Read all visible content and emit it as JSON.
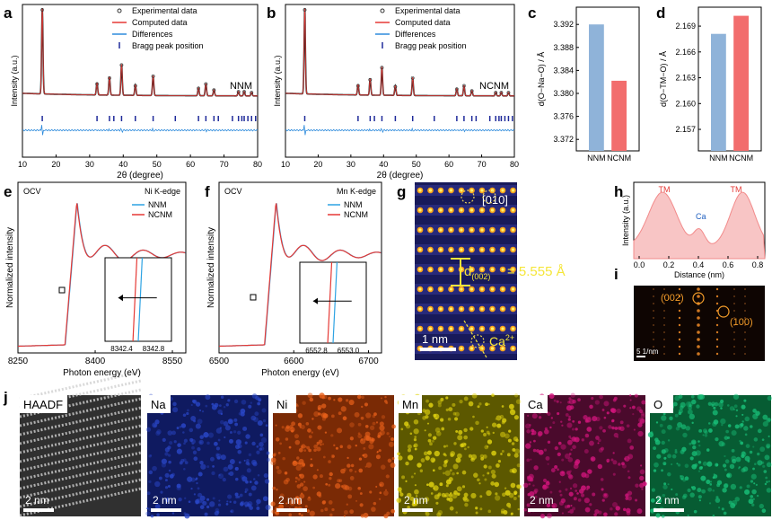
{
  "panels": {
    "a": "a",
    "b": "b",
    "c": "c",
    "d": "d",
    "e": "e",
    "f": "f",
    "g": "g",
    "h": "h",
    "i": "i",
    "j": "j"
  },
  "chart_data": [
    {
      "id": "a",
      "type": "line",
      "xlabel": "2θ (degree)",
      "ylabel": "Intensity (a.u.)",
      "xlim": [
        10,
        80
      ],
      "xticks": [
        "10",
        "20",
        "30",
        "40",
        "50",
        "60",
        "70",
        "80"
      ],
      "annotation": "NNM",
      "legend": [
        "Experimental data",
        "Computed data",
        "Differences",
        "Bragg peak position"
      ],
      "peaks": [
        {
          "x": 15.9,
          "y": 1.0
        },
        {
          "x": 32.2,
          "y": 0.14
        },
        {
          "x": 35.9,
          "y": 0.21
        },
        {
          "x": 39.5,
          "y": 0.36
        },
        {
          "x": 43.6,
          "y": 0.12
        },
        {
          "x": 48.9,
          "y": 0.23
        },
        {
          "x": 62.4,
          "y": 0.09
        },
        {
          "x": 64.6,
          "y": 0.14
        },
        {
          "x": 67.0,
          "y": 0.07
        },
        {
          "x": 74.3,
          "y": 0.05
        },
        {
          "x": 76.0,
          "y": 0.05
        },
        {
          "x": 78.2,
          "y": 0.04
        }
      ],
      "bragg": [
        15.9,
        32.2,
        35.9,
        37.2,
        39.5,
        43.6,
        48.9,
        55.5,
        62.4,
        64.6,
        67.0,
        68.3,
        72.5,
        74.3,
        75.3,
        76.0,
        77.1,
        78.2,
        79.4
      ]
    },
    {
      "id": "b",
      "type": "line",
      "xlabel": "2θ (degree)",
      "ylabel": "Intensity (a.u.)",
      "xlim": [
        10,
        80
      ],
      "xticks": [
        "10",
        "20",
        "30",
        "40",
        "50",
        "60",
        "70",
        "80"
      ],
      "annotation": "NCNM",
      "legend": [
        "Experimental data",
        "Computed data",
        "Differences",
        "Bragg peak position"
      ],
      "peaks": [
        {
          "x": 15.9,
          "y": 1.0
        },
        {
          "x": 32.2,
          "y": 0.12
        },
        {
          "x": 35.9,
          "y": 0.19
        },
        {
          "x": 39.5,
          "y": 0.33
        },
        {
          "x": 43.6,
          "y": 0.11
        },
        {
          "x": 48.9,
          "y": 0.21
        },
        {
          "x": 62.4,
          "y": 0.08
        },
        {
          "x": 64.6,
          "y": 0.12
        },
        {
          "x": 67.0,
          "y": 0.06
        },
        {
          "x": 74.3,
          "y": 0.04
        },
        {
          "x": 76.0,
          "y": 0.04
        },
        {
          "x": 78.2,
          "y": 0.04
        }
      ],
      "bragg": [
        15.9,
        32.2,
        35.9,
        37.2,
        39.5,
        43.6,
        48.9,
        55.5,
        62.4,
        64.6,
        67.0,
        68.3,
        72.5,
        74.3,
        75.3,
        76.0,
        77.1,
        78.2,
        79.4
      ]
    },
    {
      "id": "c",
      "type": "bar",
      "ylabel": "d(O−Na−O) / Å",
      "categories": [
        "NNM",
        "NCNM"
      ],
      "values": [
        3.392,
        3.3822
      ],
      "colors": [
        "#8fb3d9",
        "#f26d6d"
      ],
      "ylim": [
        3.37,
        3.395
      ],
      "yticks": [
        "3.372",
        "3.376",
        "3.380",
        "3.384",
        "3.388",
        "3.392"
      ]
    },
    {
      "id": "d",
      "type": "bar",
      "ylabel": "d(O−TM−O) / Å",
      "categories": [
        "NNM",
        "NCNM"
      ],
      "values": [
        2.1681,
        2.1702
      ],
      "colors": [
        "#8fb3d9",
        "#f26d6d"
      ],
      "ylim": [
        2.1545,
        2.1712
      ],
      "yticks": [
        "2.157",
        "2.160",
        "2.163",
        "2.166",
        "2.169"
      ]
    },
    {
      "id": "e",
      "type": "line",
      "xlabel": "Photon energy (eV)",
      "ylabel": "Normalized intensity",
      "corner_left": "OCV",
      "corner_right": "Ni K-edge",
      "series": [
        {
          "name": "NNM",
          "color": "#2ea3e3"
        },
        {
          "name": "NCNM",
          "color": "#e53935"
        }
      ],
      "xticks": [
        "8250",
        "8400",
        "8550"
      ],
      "inset_xticks": [
        "8342.4",
        "8342.8"
      ]
    },
    {
      "id": "f",
      "type": "line",
      "xlabel": "Photon energy (eV)",
      "ylabel": "Normalized intensity",
      "corner_left": "OCV",
      "corner_right": "Mn K-edge",
      "series": [
        {
          "name": "NNM",
          "color": "#2ea3e3"
        },
        {
          "name": "NCNM",
          "color": "#e53935"
        }
      ],
      "xticks": [
        "6500",
        "6600",
        "6700"
      ],
      "inset_xticks": [
        "6552.8",
        "6553.0"
      ]
    },
    {
      "id": "h",
      "type": "area",
      "xlabel": "Distance (nm)",
      "ylabel": "Intensity (a.u.)",
      "xticks": [
        "0.0",
        "0.2",
        "0.4",
        "0.6",
        "0.8"
      ],
      "labels": {
        "tm": "TM",
        "ca": "Ca"
      }
    }
  ],
  "micrographs": {
    "g": {
      "zone": "[010]",
      "dspacing": "= 5.555 Å",
      "dsym": "d",
      "dsub": "(002)",
      "scale": "1 nm",
      "ca": "Ca",
      "ca_sup": "2+"
    },
    "i": {
      "spot1": "(002)",
      "spot2": "(100)",
      "scale": "5 1/nm"
    }
  },
  "eds_maps": [
    {
      "label": "HAADF",
      "scale": "2 nm",
      "color": "#d0d0d0",
      "bg": "#303030"
    },
    {
      "label": "Na",
      "scale": "2 nm",
      "color": "#2a47c8",
      "bg": "#0f1a60"
    },
    {
      "label": "Ni",
      "scale": "2 nm",
      "color": "#e8601a",
      "bg": "#7a2a05"
    },
    {
      "label": "Mn",
      "scale": "2 nm",
      "color": "#e2d410",
      "bg": "#5c5800"
    },
    {
      "label": "Ca",
      "scale": "2 nm",
      "color": "#d2157c",
      "bg": "#4a0a2c"
    },
    {
      "label": "O",
      "scale": "2 nm",
      "color": "#19c27a",
      "bg": "#075c33"
    }
  ]
}
